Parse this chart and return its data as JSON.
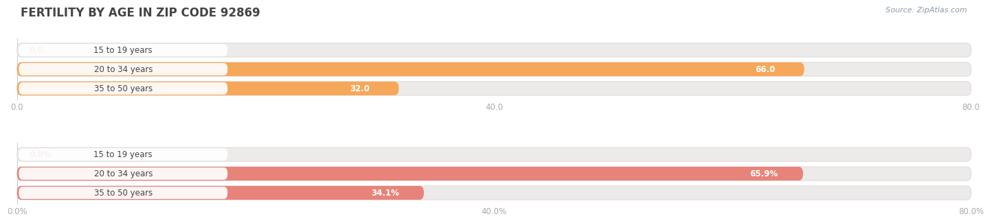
{
  "title": "FERTILITY BY AGE IN ZIP CODE 92869",
  "source": "Source: ZipAtlas.com",
  "top_chart": {
    "categories": [
      "15 to 19 years",
      "20 to 34 years",
      "35 to 50 years"
    ],
    "values": [
      0.0,
      66.0,
      32.0
    ],
    "bar_color": "#F5A85A",
    "bar_bg_color": "#EDEAEA",
    "bar_border_color": "#E0DCDC",
    "label_color": "#C87830",
    "xlim": [
      0,
      80.0
    ],
    "xticks": [
      0.0,
      40.0,
      80.0
    ],
    "value_labels": [
      "0.0",
      "66.0",
      "32.0"
    ]
  },
  "bottom_chart": {
    "categories": [
      "15 to 19 years",
      "20 to 34 years",
      "35 to 50 years"
    ],
    "values": [
      0.0,
      65.9,
      34.1
    ],
    "bar_color": "#E8837A",
    "bar_bg_color": "#EDEAEA",
    "bar_border_color": "#E0DCDC",
    "label_color": "#C85050",
    "xlim": [
      0,
      80.0
    ],
    "xticks": [
      0.0,
      40.0,
      80.0
    ],
    "value_labels": [
      "0.0%",
      "65.9%",
      "34.1%"
    ]
  },
  "title_fontsize": 12,
  "label_fontsize": 8.5,
  "tick_fontsize": 8.5,
  "source_fontsize": 8,
  "bar_height": 0.72,
  "fig_bg_color": "#FFFFFF",
  "plot_bg_color": "#F7F5F5",
  "tick_color": "#AAAAAA",
  "ylabel_color": "#555555",
  "category_fontsize": 8.5
}
